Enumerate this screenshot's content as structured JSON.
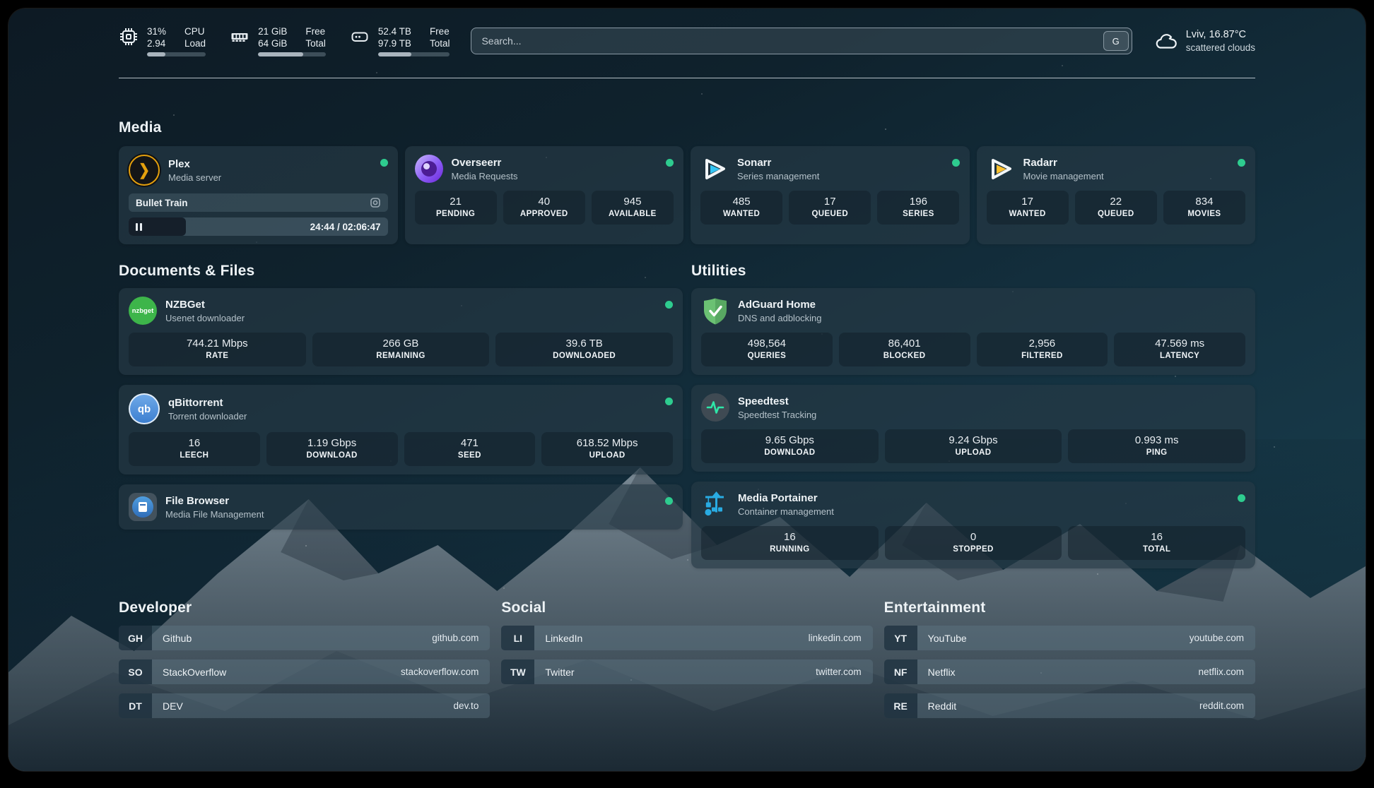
{
  "colors": {
    "status_online": "#2ecc8f",
    "plex_accent": "#e5a00d",
    "sonarr_accent": "#35c5f4",
    "radarr_accent": "#ffc230",
    "nzbget_accent": "#3db54a",
    "qbittorrent_accent": "#3c7fd0",
    "adguard_accent": "#68bd71",
    "speedtest_accent": "#2ee6a8",
    "portainer_accent": "#29abe2"
  },
  "topbar": {
    "cpu": {
      "value_top": "31%",
      "value_bottom": "2.94",
      "label_top": "CPU",
      "label_bottom": "Load",
      "progress_pct": 31
    },
    "ram": {
      "value_top": "21 GiB",
      "value_bottom": "64 GiB",
      "label_top": "Free",
      "label_bottom": "Total",
      "progress_pct": 67
    },
    "disk": {
      "value_top": "52.4 TB",
      "value_bottom": "97.9 TB",
      "label_top": "Free",
      "label_bottom": "Total",
      "progress_pct": 46
    },
    "search": {
      "placeholder": "Search...",
      "button_label": "G"
    },
    "weather": {
      "location_temp": "Lviv, 16.87°C",
      "condition": "scattered clouds"
    }
  },
  "media": {
    "title": "Media",
    "plex": {
      "name": "Plex",
      "subtitle": "Media server",
      "now_playing": "Bullet Train",
      "elapsed_total": "24:44 / 02:06:47",
      "progress_pct": 19.5
    },
    "overseerr": {
      "name": "Overseerr",
      "subtitle": "Media Requests",
      "stats": [
        {
          "value": "21",
          "label": "PENDING"
        },
        {
          "value": "40",
          "label": "APPROVED"
        },
        {
          "value": "945",
          "label": "AVAILABLE"
        }
      ]
    },
    "sonarr": {
      "name": "Sonarr",
      "subtitle": "Series management",
      "stats": [
        {
          "value": "485",
          "label": "WANTED"
        },
        {
          "value": "17",
          "label": "QUEUED"
        },
        {
          "value": "196",
          "label": "SERIES"
        }
      ]
    },
    "radarr": {
      "name": "Radarr",
      "subtitle": "Movie management",
      "stats": [
        {
          "value": "17",
          "label": "WANTED"
        },
        {
          "value": "22",
          "label": "QUEUED"
        },
        {
          "value": "834",
          "label": "MOVIES"
        }
      ]
    }
  },
  "documents": {
    "title": "Documents & Files",
    "nzbget": {
      "name": "NZBGet",
      "subtitle": "Usenet downloader",
      "stats": [
        {
          "value": "744.21 Mbps",
          "label": "RATE"
        },
        {
          "value": "266 GB",
          "label": "REMAINING"
        },
        {
          "value": "39.6 TB",
          "label": "DOWNLOADED"
        }
      ]
    },
    "qbittorrent": {
      "name": "qBittorrent",
      "subtitle": "Torrent downloader",
      "stats": [
        {
          "value": "16",
          "label": "LEECH"
        },
        {
          "value": "1.19 Gbps",
          "label": "DOWNLOAD"
        },
        {
          "value": "471",
          "label": "SEED"
        },
        {
          "value": "618.52 Mbps",
          "label": "UPLOAD"
        }
      ]
    },
    "filebrowser": {
      "name": "File Browser",
      "subtitle": "Media File Management"
    }
  },
  "utilities": {
    "title": "Utilities",
    "adguard": {
      "name": "AdGuard Home",
      "subtitle": "DNS and adblocking",
      "stats": [
        {
          "value": "498,564",
          "label": "QUERIES"
        },
        {
          "value": "86,401",
          "label": "BLOCKED"
        },
        {
          "value": "2,956",
          "label": "FILTERED"
        },
        {
          "value": "47.569 ms",
          "label": "LATENCY"
        }
      ]
    },
    "speedtest": {
      "name": "Speedtest",
      "subtitle": "Speedtest Tracking",
      "stats": [
        {
          "value": "9.65 Gbps",
          "label": "DOWNLOAD"
        },
        {
          "value": "9.24 Gbps",
          "label": "UPLOAD"
        },
        {
          "value": "0.993 ms",
          "label": "PING"
        }
      ]
    },
    "portainer": {
      "name": "Media Portainer",
      "subtitle": "Container management",
      "stats": [
        {
          "value": "16",
          "label": "RUNNING"
        },
        {
          "value": "0",
          "label": "STOPPED"
        },
        {
          "value": "16",
          "label": "TOTAL"
        }
      ]
    }
  },
  "links": {
    "developer": {
      "title": "Developer",
      "items": [
        {
          "abbr": "GH",
          "name": "Github",
          "url": "github.com"
        },
        {
          "abbr": "SO",
          "name": "StackOverflow",
          "url": "stackoverflow.com"
        },
        {
          "abbr": "DT",
          "name": "DEV",
          "url": "dev.to"
        }
      ]
    },
    "social": {
      "title": "Social",
      "items": [
        {
          "abbr": "LI",
          "name": "LinkedIn",
          "url": "linkedin.com"
        },
        {
          "abbr": "TW",
          "name": "Twitter",
          "url": "twitter.com"
        }
      ]
    },
    "entertainment": {
      "title": "Entertainment",
      "items": [
        {
          "abbr": "YT",
          "name": "YouTube",
          "url": "youtube.com"
        },
        {
          "abbr": "NF",
          "name": "Netflix",
          "url": "netflix.com"
        },
        {
          "abbr": "RE",
          "name": "Reddit",
          "url": "reddit.com"
        }
      ]
    }
  }
}
